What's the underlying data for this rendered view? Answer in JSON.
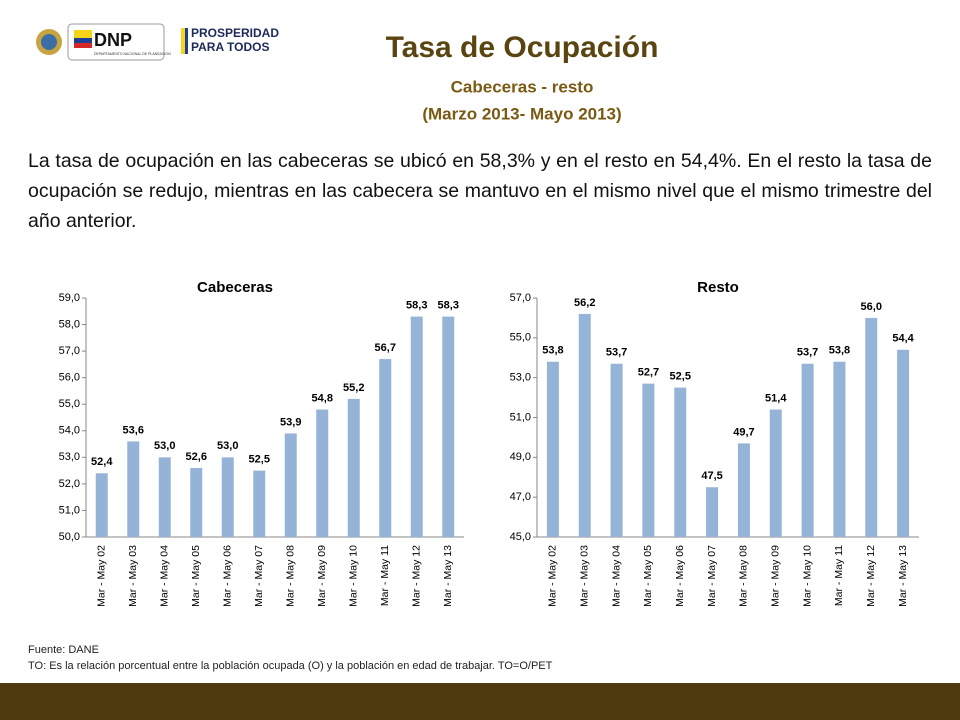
{
  "logos": {
    "dnp": "DNP",
    "dnp_sub": "DEPARTAMENTO NACIONAL DE PLANEACIÓN",
    "prosperidad_1": "PROSPERIDAD",
    "prosperidad_2": "PARA TODOS"
  },
  "title": "Tasa de Ocupación",
  "subtitle": "Cabeceras - resto",
  "period": "(Marzo 2013- Mayo 2013)",
  "body": "La tasa de ocupación en las cabeceras se ubicó en 58,3% y en el resto en 54,4%. En el resto la tasa de ocupación se redujo, mientras en las cabecera se mantuvo en el mismo nivel que el mismo trimestre del año anterior.",
  "source": "Fuente: DANE",
  "note": "TO: Es la relación porcentual entre la población ocupada (O) y la población  en edad de trabajar. TO=O/PET",
  "chart_data": [
    {
      "type": "bar",
      "title": "Cabeceras",
      "color": "#95b3d7",
      "categories": [
        "Mar - May 02",
        "Mar - May 03",
        "Mar - May 04",
        "Mar - May 05",
        "Mar - May 06",
        "Mar - May 07",
        "Mar - May 08",
        "Mar - May 09",
        "Mar - May 10",
        "Mar - May 11",
        "Mar - May 12",
        "Mar - May 13"
      ],
      "values": [
        52.4,
        53.6,
        53.0,
        52.6,
        53.0,
        52.5,
        53.9,
        54.8,
        55.2,
        56.7,
        58.3,
        58.3
      ],
      "value_labels": [
        "52,4",
        "53,6",
        "53,0",
        "52,6",
        "53,0",
        "52,5",
        "53,9",
        "54,8",
        "55,2",
        "56,7",
        "58,3",
        "58,3"
      ],
      "ylim": [
        50,
        59
      ],
      "yticks": [
        {
          "value": 50,
          "label": "50,0"
        },
        {
          "value": 51,
          "label": "51,0"
        },
        {
          "value": 52,
          "label": "52,0"
        },
        {
          "value": 53,
          "label": "53,0"
        },
        {
          "value": 54,
          "label": "54,0"
        },
        {
          "value": 55,
          "label": "55,0"
        },
        {
          "value": 56,
          "label": "56,0"
        },
        {
          "value": 57,
          "label": "57,0"
        },
        {
          "value": 58,
          "label": "58,0"
        },
        {
          "value": 59,
          "label": "59,0"
        }
      ],
      "grid": false
    },
    {
      "type": "bar",
      "title": "Resto",
      "color": "#95b3d7",
      "categories": [
        "Mar - May 02",
        "Mar - May 03",
        "Mar - May 04",
        "Mar - May 05",
        "Mar - May 06",
        "Mar - May 07",
        "Mar - May 08",
        "Mar - May 09",
        "Mar - May 10",
        "Mar - May 11",
        "Mar - May 12",
        "Mar - May 13"
      ],
      "values": [
        53.8,
        56.2,
        53.7,
        52.7,
        52.5,
        47.5,
        49.7,
        51.4,
        53.7,
        53.8,
        56.0,
        54.4
      ],
      "value_labels": [
        "53,8",
        "56,2",
        "53,7",
        "52,7",
        "52,5",
        "47,5",
        "49,7",
        "51,4",
        "53,7",
        "53,8",
        "56,0",
        "54,4"
      ],
      "ylim": [
        45,
        57
      ],
      "yticks": [
        {
          "value": 45,
          "label": "45,0"
        },
        {
          "value": 47,
          "label": "47,0"
        },
        {
          "value": 49,
          "label": "49,0"
        },
        {
          "value": 51,
          "label": "51,0"
        },
        {
          "value": 53,
          "label": "53,0"
        },
        {
          "value": 55,
          "label": "55,0"
        },
        {
          "value": 57,
          "label": "57,0"
        }
      ],
      "grid": false
    }
  ]
}
